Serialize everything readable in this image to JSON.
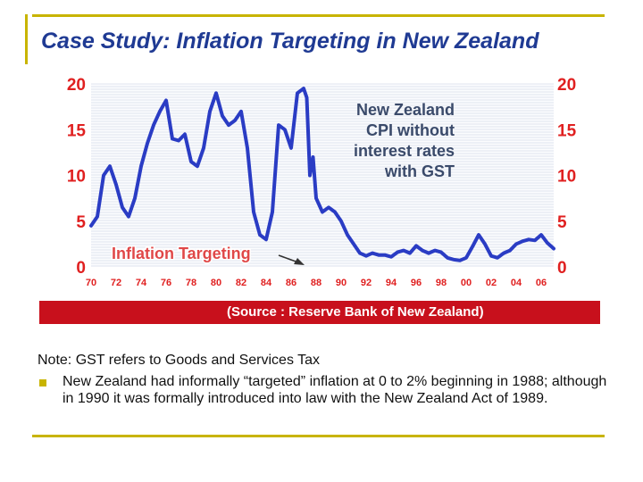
{
  "slide": {
    "title": "Case Study: Inflation Targeting in New Zealand",
    "source": "(Source : Reserve Bank of New Zealand)",
    "note": "Note: GST refers to Goods and Services Tax",
    "bullets": [
      "New Zealand had informally “targeted” inflation at 0 to 2% beginning in 1988; although in 1990 it was formally introduced into law with the New Zealand Act of 1989."
    ]
  },
  "colors": {
    "accent": "#c8b400",
    "title": "#1f3a93",
    "source_bar": "#c8101c",
    "line": "#2a3cc4",
    "axis_text": "#e02020",
    "chart_title": "#3a4a6a"
  },
  "chart_data": {
    "type": "line",
    "title": "New Zealand CPI without interest rates with GST",
    "annotation": "Inflation Targeting",
    "xlim": [
      1970,
      2007
    ],
    "ylim": [
      0,
      20
    ],
    "yticks": [
      0,
      5,
      10,
      15,
      20
    ],
    "xticklabels": [
      "70",
      "72",
      "74",
      "76",
      "78",
      "80",
      "82",
      "84",
      "86",
      "88",
      "90",
      "92",
      "94",
      "96",
      "98",
      "00",
      "02",
      "04",
      "06"
    ],
    "xtickvalues": [
      1970,
      1972,
      1974,
      1976,
      1978,
      1980,
      1982,
      1984,
      1986,
      1988,
      1990,
      1992,
      1994,
      1996,
      1998,
      2000,
      2002,
      2004,
      2006
    ],
    "grid": true,
    "series": [
      {
        "x": [
          1970.0,
          1970.5,
          1971.0,
          1971.5,
          1972.0,
          1972.5,
          1973.0,
          1973.5,
          1974.0,
          1974.5,
          1975.0,
          1975.5,
          1976.0,
          1976.5,
          1977.0,
          1977.5,
          1978.0,
          1978.5,
          1979.0,
          1979.5,
          1980.0,
          1980.5,
          1981.0,
          1981.5,
          1982.0,
          1982.5,
          1983.0,
          1983.5,
          1984.0,
          1984.5,
          1985.0,
          1985.5,
          1986.0,
          1986.5,
          1987.0,
          1987.25,
          1987.5,
          1987.75,
          1988.0,
          1988.5,
          1989.0,
          1989.5,
          1990.0,
          1990.5,
          1991.0,
          1991.5,
          1992.0,
          1992.5,
          1993.0,
          1993.5,
          1994.0,
          1994.5,
          1995.0,
          1995.5,
          1996.0,
          1996.5,
          1997.0,
          1997.5,
          1998.0,
          1998.5,
          1999.0,
          1999.5,
          2000.0,
          2000.5,
          2001.0,
          2001.5,
          2002.0,
          2002.5,
          2003.0,
          2003.5,
          2004.0,
          2004.5,
          2005.0,
          2005.5,
          2006.0,
          2006.5,
          2007.0
        ],
        "y": [
          4.5,
          5.5,
          10.0,
          11.0,
          9.0,
          6.5,
          5.5,
          7.5,
          11.0,
          13.5,
          15.5,
          17.0,
          18.2,
          14.0,
          13.8,
          14.5,
          11.5,
          11.0,
          13.0,
          17.0,
          19.0,
          16.5,
          15.5,
          16.0,
          17.0,
          13.0,
          6.0,
          3.5,
          3.0,
          6.0,
          15.5,
          15.0,
          13.0,
          19.0,
          19.5,
          18.5,
          10.0,
          12.0,
          7.5,
          6.0,
          6.5,
          6.0,
          5.0,
          3.5,
          2.5,
          1.5,
          1.2,
          1.5,
          1.3,
          1.3,
          1.1,
          1.6,
          1.8,
          1.5,
          2.3,
          1.8,
          1.5,
          1.8,
          1.6,
          1.0,
          0.8,
          0.7,
          1.0,
          2.2,
          3.5,
          2.5,
          1.2,
          1.0,
          1.5,
          1.8,
          2.5,
          2.8,
          3.0,
          2.9,
          3.5,
          2.6,
          2.0
        ]
      }
    ]
  }
}
